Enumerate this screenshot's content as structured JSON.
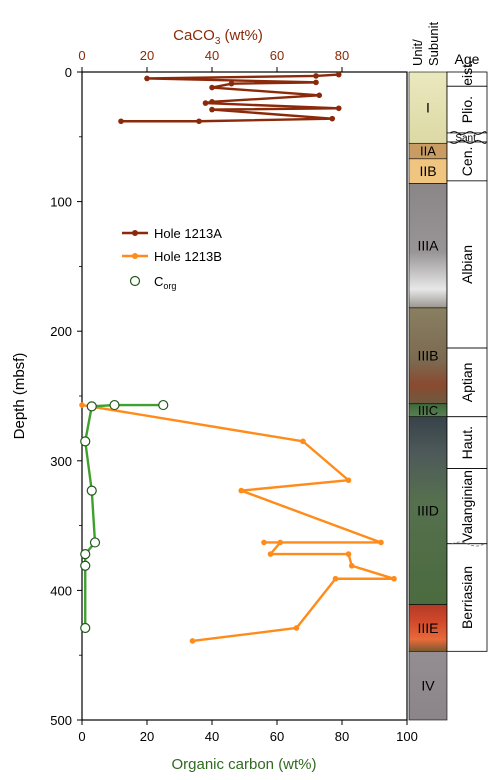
{
  "chart_data": {
    "type": "line",
    "title": "",
    "top_axis_label_main": "CaCO",
    "top_axis_label_sub": "3",
    "top_axis_label_unit": " (wt%)",
    "top_ticks": [
      "0",
      "20",
      "40",
      "60",
      "80"
    ],
    "top_xlim": [
      0,
      100
    ],
    "xlabel": "Organic carbon (wt%)",
    "bottom_ticks": [
      "0",
      "20",
      "40",
      "60",
      "80",
      "100"
    ],
    "xlim": [
      0,
      100
    ],
    "ylabel": "Depth (mbsf)",
    "y_ticks": [
      "0",
      "100",
      "200",
      "300",
      "400",
      "500"
    ],
    "ylim": [
      0,
      500
    ],
    "legend_position": "upper-left",
    "series": [
      {
        "name": "Hole 1213A",
        "color": "#8b2a0a",
        "marker": "filled-circle",
        "points": [
          {
            "x": 79,
            "y": 2
          },
          {
            "x": 72,
            "y": 3
          },
          {
            "x": 20,
            "y": 5
          },
          {
            "x": 72,
            "y": 8
          },
          {
            "x": 46,
            "y": 9
          },
          {
            "x": 40,
            "y": 12
          },
          {
            "x": 73,
            "y": 18
          },
          {
            "x": 40,
            "y": 23
          },
          {
            "x": 38,
            "y": 24
          },
          {
            "x": 79,
            "y": 28
          },
          {
            "x": 40,
            "y": 29
          },
          {
            "x": 77,
            "y": 36
          },
          {
            "x": 36,
            "y": 38
          },
          {
            "x": 12,
            "y": 38
          }
        ]
      },
      {
        "name": "Hole 1213B",
        "color": "#ff8c1a",
        "marker": "filled-circle",
        "points": [
          {
            "x": 0,
            "y": 257
          },
          {
            "x": 68,
            "y": 285
          },
          {
            "x": 82,
            "y": 315
          },
          {
            "x": 49,
            "y": 323
          },
          {
            "x": 92,
            "y": 363
          },
          {
            "x": 56,
            "y": 363
          },
          {
            "x": 61,
            "y": 363
          },
          {
            "x": 58,
            "y": 372
          },
          {
            "x": 82,
            "y": 372
          },
          {
            "x": 83,
            "y": 381
          },
          {
            "x": 96,
            "y": 391
          },
          {
            "x": 78,
            "y": 391
          },
          {
            "x": 66,
            "y": 429
          },
          {
            "x": 34,
            "y": 439
          }
        ]
      },
      {
        "name_main": "C",
        "name_sub": "org",
        "color": "#3fa02e",
        "marker": "open-circle",
        "points": [
          {
            "x": 25,
            "y": 257
          },
          {
            "x": 10,
            "y": 257
          },
          {
            "x": 3,
            "y": 258
          },
          {
            "x": 1,
            "y": 285
          },
          {
            "x": 3,
            "y": 323
          },
          {
            "x": 4,
            "y": 363
          },
          {
            "x": 1,
            "y": 372
          },
          {
            "x": 1,
            "y": 381
          },
          {
            "x": 1,
            "y": 429
          }
        ]
      }
    ],
    "unit_column": {
      "header_line1": "Unit/",
      "header_line2": "Subunit",
      "units": [
        {
          "label": "I",
          "top": 0,
          "bottom": 55,
          "color": "#e6e3b2"
        },
        {
          "label": "IIA",
          "top": 55,
          "bottom": 67,
          "color": "#c89c62"
        },
        {
          "label": "IIB",
          "top": 67,
          "bottom": 86,
          "color": "#f0c580"
        },
        {
          "label": "IIIA",
          "top": 86,
          "bottom": 182,
          "color": "#8a8586"
        },
        {
          "label": "IIIB",
          "top": 182,
          "bottom": 256,
          "color": "#8a7f60"
        },
        {
          "label": "IIIC",
          "top": 256,
          "bottom": 266,
          "color": "#4e7a4a"
        },
        {
          "label": "IIID",
          "top": 266,
          "bottom": 411,
          "color": "#4f6f45"
        },
        {
          "label": "IIIE",
          "top": 411,
          "bottom": 447,
          "color": "#b53a25"
        },
        {
          "label": "IV",
          "top": 447,
          "bottom": 500,
          "color": "#938c93"
        }
      ]
    },
    "age_column": {
      "header": "Age",
      "ages": [
        {
          "label": "Pleist.",
          "top": 0,
          "bottom": 11
        },
        {
          "label": "Plio.",
          "top": 11,
          "bottom": 47
        },
        {
          "label": "Sant.",
          "top": 47,
          "bottom": 54
        },
        {
          "label": "Cen.",
          "top": 54,
          "bottom": 84
        },
        {
          "label": "Albian",
          "top": 84,
          "bottom": 213
        },
        {
          "label": "Aptian",
          "top": 213,
          "bottom": 266
        },
        {
          "label": "Haut.",
          "top": 266,
          "bottom": 306
        },
        {
          "label": "Valanginian",
          "top": 306,
          "bottom": 364
        },
        {
          "label": "Berriasian",
          "top": 364,
          "bottom": 447
        }
      ]
    }
  }
}
